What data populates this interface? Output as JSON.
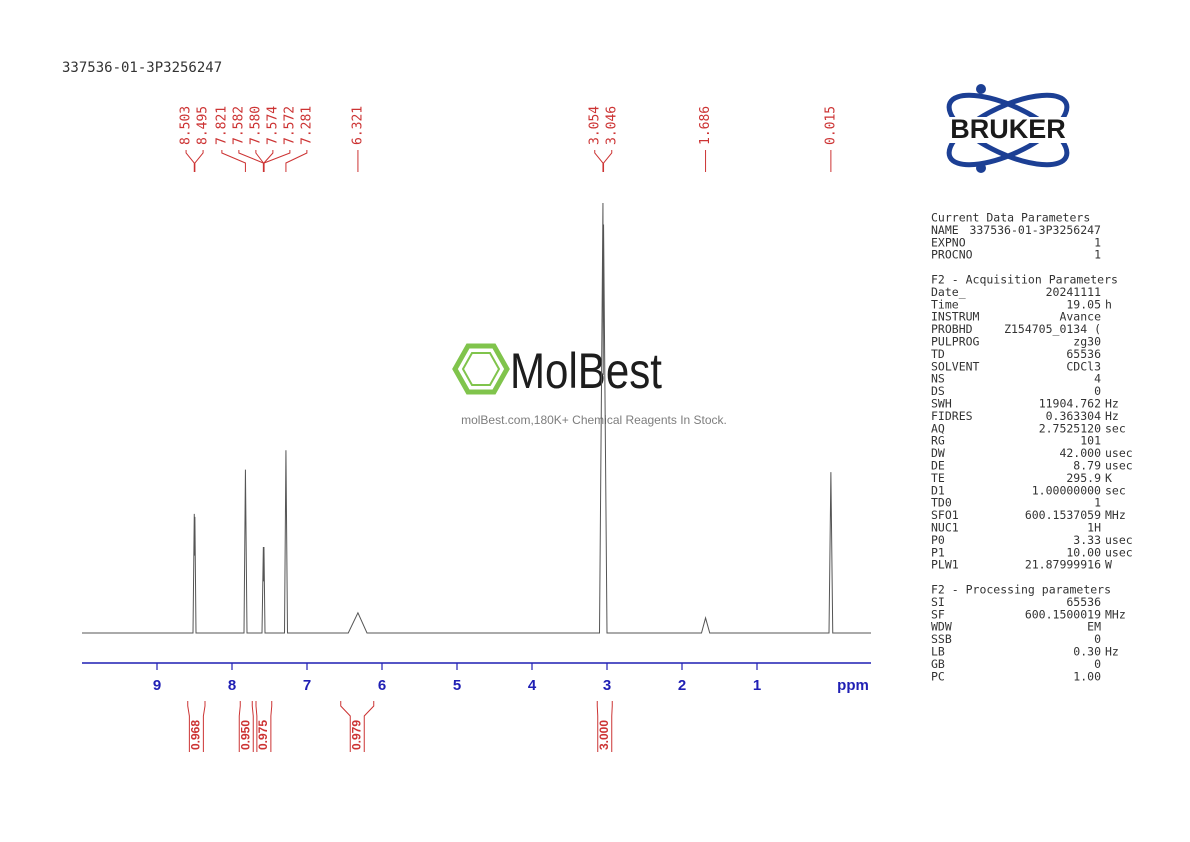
{
  "chart_data": {
    "type": "line",
    "title": "337536-01-3P3256247",
    "x": [
      10,
      8.52,
      8.503,
      8.499,
      8.495,
      8.48,
      7.84,
      7.821,
      7.8,
      7.6,
      7.582,
      7.578,
      7.574,
      7.56,
      7.3,
      7.281,
      7.26,
      6.45,
      6.321,
      6.2,
      3.1,
      3.054,
      3.05,
      3.046,
      3.0,
      1.74,
      1.686,
      1.63,
      0.04,
      0.015,
      -0.01,
      -0.52
    ],
    "values": [
      0,
      0,
      27.7,
      18,
      27,
      0,
      0,
      38,
      0,
      0,
      20,
      12,
      20,
      0,
      0,
      42.5,
      0,
      0,
      4.7,
      0,
      0,
      100,
      60,
      95,
      0,
      0,
      3.5,
      0,
      0,
      37.4,
      0,
      0
    ],
    "color": "#555555",
    "xlim": [
      10,
      -0.52
    ],
    "ylim": [
      0,
      100
    ],
    "xticks": [
      9,
      8,
      7,
      6,
      5,
      4,
      3,
      2,
      1
    ],
    "xlabel": "ppm",
    "peaks": {
      "values": [
        8.503,
        8.495,
        7.821,
        7.582,
        7.58,
        7.574,
        7.572,
        7.281,
        6.321,
        3.054,
        3.046,
        1.686,
        0.015
      ],
      "value_labels": [
        "8.503",
        "8.495",
        "7.821",
        "7.582",
        "7.580",
        "7.574",
        "7.572",
        "7.281",
        "6.321",
        "3.054",
        "3.046",
        "1.686",
        "0.015"
      ]
    },
    "integrals": {
      "ranges": [
        [
          8.59,
          8.36
        ],
        [
          7.89,
          7.73
        ],
        [
          7.68,
          7.47
        ],
        [
          6.55,
          6.11
        ],
        [
          3.13,
          2.93
        ]
      ],
      "values": [
        0.968,
        0.95,
        0.975,
        0.979,
        3.0
      ],
      "value_labels": [
        "0.968",
        "0.950",
        "0.975",
        "0.979",
        "3.000"
      ]
    }
  },
  "logo": "BRUKER",
  "watermark": {
    "brand": "MolBest",
    "tagline": "molBest.com,180K+ Chemical Reagents In Stock."
  },
  "parameters": [
    {
      "title": "Current Data Parameters",
      "rows": [
        [
          "NAME",
          "337536-01-3P3256247"
        ],
        [
          "EXPNO",
          "1"
        ],
        [
          "PROCNO",
          "1"
        ]
      ]
    },
    {
      "title": "F2 - Acquisition Parameters",
      "rows": [
        [
          "Date_",
          "20241111"
        ],
        [
          "Time",
          "19.05",
          "h"
        ],
        [
          "INSTRUM",
          "Avance"
        ],
        [
          "PROBHD",
          "Z154705_0134 ("
        ],
        [
          "PULPROG",
          "zg30"
        ],
        [
          "TD",
          "65536"
        ],
        [
          "SOLVENT",
          "CDCl3"
        ],
        [
          "NS",
          "4"
        ],
        [
          "DS",
          "0"
        ],
        [
          "SWH",
          "11904.762",
          "Hz"
        ],
        [
          "FIDRES",
          "0.363304",
          "Hz"
        ],
        [
          "AQ",
          "2.7525120",
          "sec"
        ],
        [
          "RG",
          "101"
        ],
        [
          "DW",
          "42.000",
          "usec"
        ],
        [
          "DE",
          "8.79",
          "usec"
        ],
        [
          "TE",
          "295.9",
          "K"
        ],
        [
          "D1",
          "1.00000000",
          "sec"
        ],
        [
          "TD0",
          "1"
        ],
        [
          "SFO1",
          "600.1537059",
          "MHz"
        ],
        [
          "NUC1",
          "1H"
        ],
        [
          "P0",
          "3.33",
          "usec"
        ],
        [
          "P1",
          "10.00",
          "usec"
        ],
        [
          "PLW1",
          "21.87999916",
          "W"
        ]
      ]
    },
    {
      "title": "F2 - Processing parameters",
      "rows": [
        [
          "SI",
          "65536"
        ],
        [
          "SF",
          "600.1500019",
          "MHz"
        ],
        [
          "WDW",
          "EM"
        ],
        [
          "SSB",
          "0"
        ],
        [
          "LB",
          "0.30",
          "Hz"
        ],
        [
          "GB",
          "0"
        ],
        [
          "PC",
          "1.00"
        ]
      ]
    }
  ]
}
